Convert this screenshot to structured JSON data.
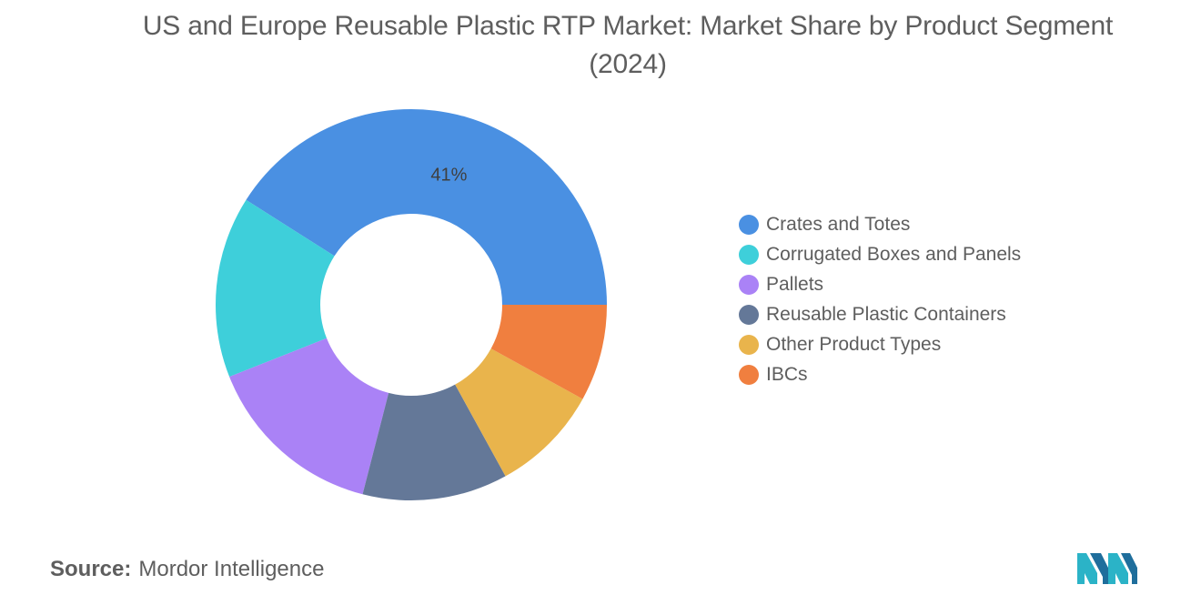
{
  "title": "US and Europe Reusable Plastic RTP Market: Market Share by Product Segment (2024)",
  "source": {
    "label": "Source:",
    "value": "Mordor Intelligence"
  },
  "logo": {
    "icon": "mordor-intelligence-logo"
  },
  "chart_data": {
    "type": "pie",
    "donut": true,
    "categories": [
      "Crates and Totes",
      "Corrugated Boxes and Panels",
      "Pallets",
      "Reusable Plastic Containers",
      "Other Product Types",
      "IBCs"
    ],
    "values": [
      41,
      15,
      15,
      12,
      9,
      8
    ],
    "colors": [
      "#4a90e2",
      "#3ecfda",
      "#aa82f6",
      "#647898",
      "#e9b44c",
      "#f07f3f"
    ],
    "data_labels": [
      "41%",
      "",
      "",
      "",
      "",
      ""
    ],
    "legend_position": "right",
    "start_angle_deg": 0,
    "direction": "counterclockwise"
  }
}
